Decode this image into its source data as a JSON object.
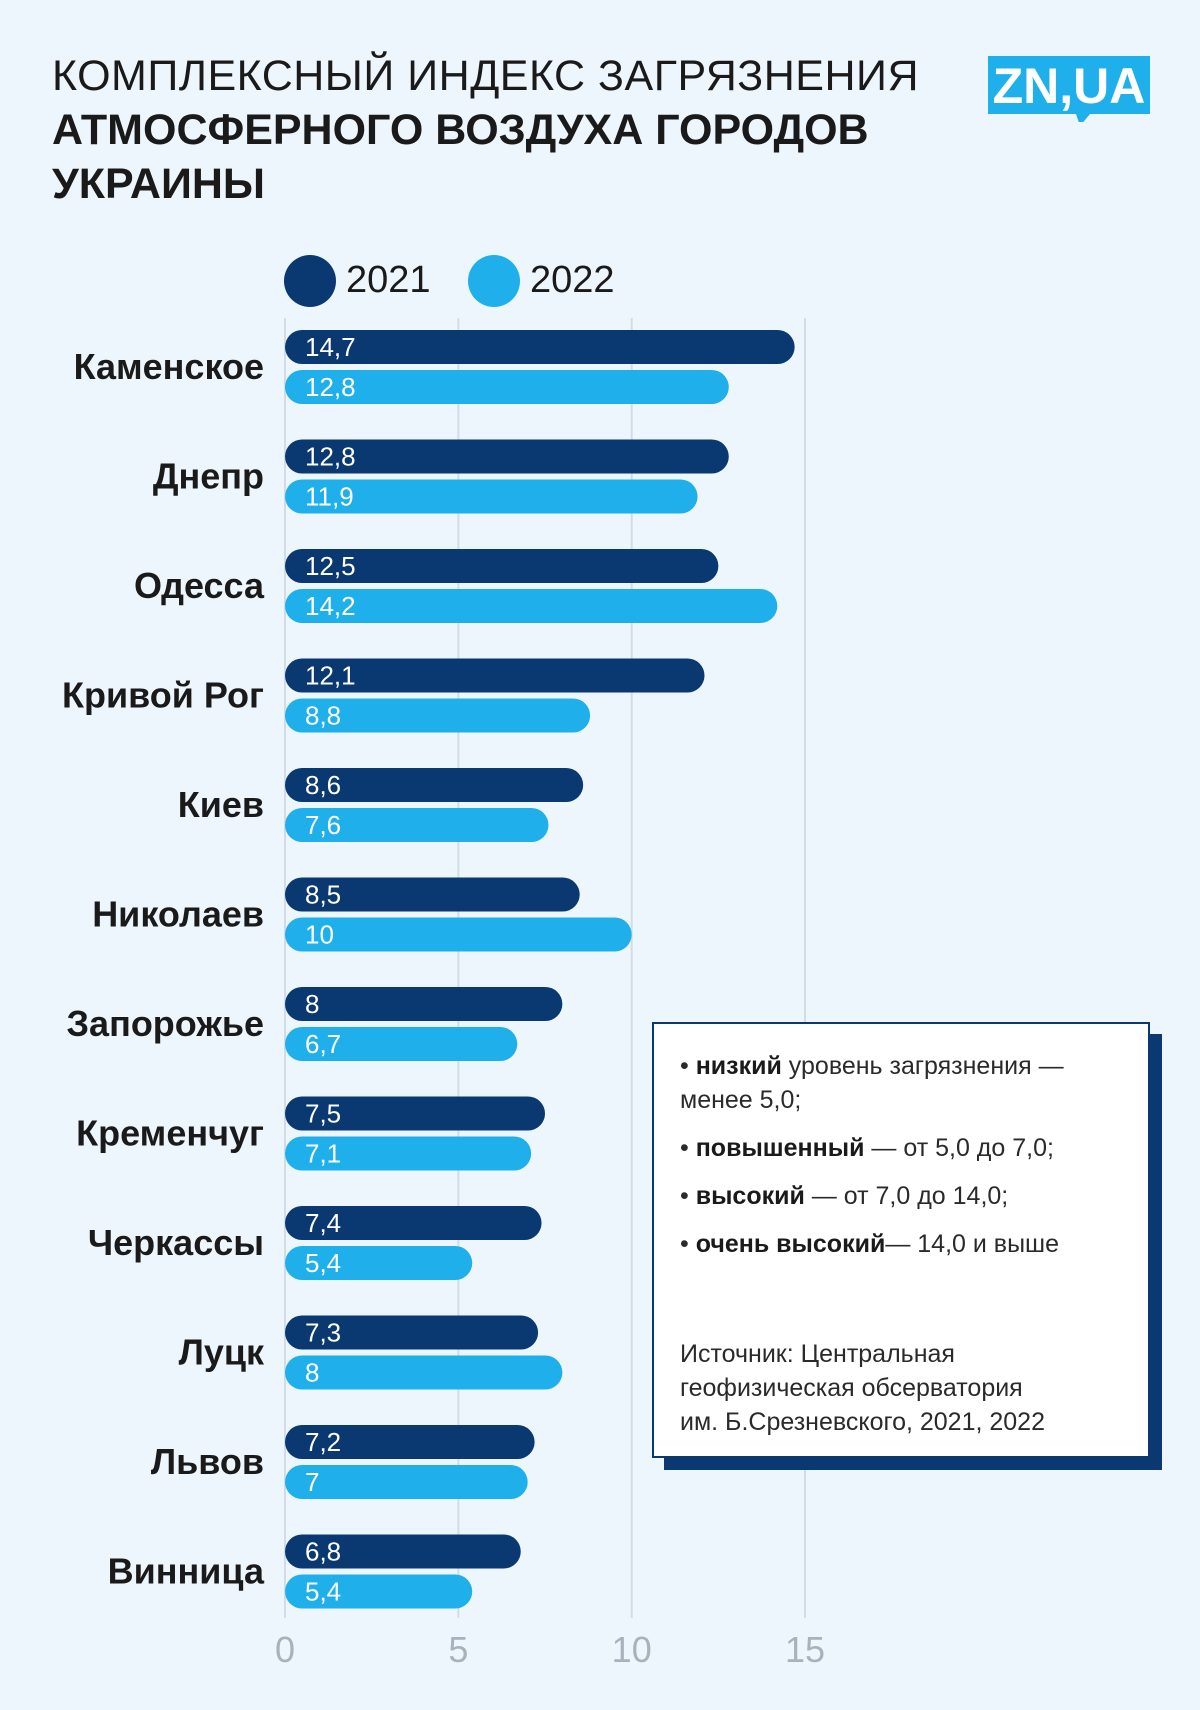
{
  "title": {
    "line1": "КОМПЛЕКСНЫЙ ИНДЕКС ЗАГРЯЗНЕНИЯ",
    "line2": "АТМОСФЕРНОГО ВОЗДУХА ГОРОДОВ",
    "line3": "УКРАИНЫ"
  },
  "logo": {
    "text": "ZN,UA"
  },
  "colors": {
    "s2021": "#0a3870",
    "s2022": "#1fb0ec",
    "grid": "#d3dce6",
    "axis_text": "#a8b2bd"
  },
  "legend": [
    {
      "label": "2021",
      "color": "#0a3870"
    },
    {
      "label": "2022",
      "color": "#1fb0ec"
    }
  ],
  "info": {
    "low_bold": "низкий",
    "low_rest": " уровень загрязнения —",
    "low_rest2": "менее 5,0;",
    "elev_bold": "повышенный",
    "elev_rest": " — от 5,0 до 7,0;",
    "high_bold": "высокий",
    "high_rest": " — от 7,0 до 14,0;",
    "vhigh_bold": "очень высокий",
    "vhigh_rest": "— 14,0 и выше",
    "source1": "Источник: Центральная",
    "source2": "геофизическая обсерватория",
    "source3": "им. Б.Срезневского, 2021, 2022"
  },
  "chart_data": {
    "type": "bar",
    "orientation": "horizontal",
    "categories": [
      "Каменское",
      "Днепр",
      "Одесса",
      "Кривой Рог",
      "Киев",
      "Николаев",
      "Запорожье",
      "Кременчуг",
      "Черкассы",
      "Луцк",
      "Львов",
      "Винница"
    ],
    "series": [
      {
        "name": "2021",
        "values": [
          14.7,
          12.8,
          12.5,
          12.1,
          8.6,
          8.5,
          8,
          7.5,
          7.4,
          7.3,
          7.2,
          6.8
        ],
        "labels": [
          "14,7",
          "12,8",
          "12,5",
          "12,1",
          "8,6",
          "8,5",
          "8",
          "7,5",
          "7,4",
          "7,3",
          "7,2",
          "6,8"
        ]
      },
      {
        "name": "2022",
        "values": [
          12.8,
          11.9,
          14.2,
          8.8,
          7.6,
          10,
          6.7,
          7.1,
          5.4,
          8,
          7,
          5.4
        ],
        "labels": [
          "12,8",
          "11,9",
          "14,2",
          "8,8",
          "7,6",
          "10",
          "6,7",
          "7,1",
          "5,4",
          "8",
          "7",
          "5,4"
        ]
      }
    ],
    "xticks": [
      0,
      5,
      10,
      15
    ],
    "xlim": [
      0,
      15
    ],
    "grid": true,
    "legend_position": "top-left"
  }
}
